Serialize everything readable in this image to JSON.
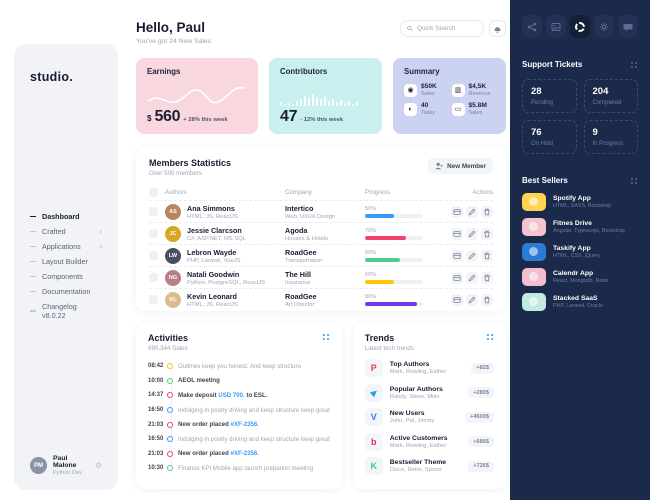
{
  "colors": {
    "accent_blue": "#3699ff",
    "danger": "#f1416c",
    "success": "#50cd89",
    "warning": "#ffc700",
    "purple": "#7239ea",
    "card_pink": "#f8d7df",
    "card_cyan": "#c9f0ee",
    "card_periwinkle": "#ccd3f0",
    "aside_bg": "#1b2a4a"
  },
  "misc": {
    "chevron": "›",
    "gear_glyph": "⚙"
  },
  "sidebar": {
    "logo": "studio.",
    "nav": [
      {
        "label": "Dashboard"
      },
      {
        "label": "Crafted"
      },
      {
        "label": "Applications"
      },
      {
        "label": "Layout Builder"
      },
      {
        "label": "Components"
      },
      {
        "label": "Documentation"
      },
      {
        "label": "Changelog v8.0.22"
      }
    ],
    "user": {
      "name": "Paul Malone",
      "role": "Python Dev"
    }
  },
  "header": {
    "greeting": "Hello, Paul",
    "subtitle": "You've got 24 New Sales",
    "search_placeholder": "Quick Search"
  },
  "stat_cards": {
    "earnings": {
      "title": "Earnings",
      "currency": "$",
      "value": "560",
      "delta": "+ 28% this week"
    },
    "contributors": {
      "title": "Contributors",
      "value": "47",
      "delta": "- 12% this week",
      "bars": [
        4,
        2,
        3,
        2,
        5,
        7,
        10,
        8,
        12,
        9,
        7,
        9,
        5,
        7,
        4,
        6,
        3,
        5,
        2,
        4
      ]
    },
    "summary": {
      "title": "Summary",
      "items": [
        {
          "icon": "◉",
          "value": "$50K",
          "label": "Sales"
        },
        {
          "icon": "▥",
          "value": "$4,5K",
          "label": "Revenue"
        },
        {
          "icon": "◐",
          "value": "40",
          "label": "Tasks"
        },
        {
          "icon": "▭",
          "value": "$5.8M",
          "label": "Sales"
        }
      ]
    }
  },
  "members": {
    "title": "Members Statistics",
    "subtitle": "Over 500 members",
    "button": "New Member",
    "columns": [
      "Authors",
      "Company",
      "Progress",
      "Actions"
    ],
    "rows": [
      {
        "name": "Ana Simmons",
        "skills": "HTML, JS, ReactJS",
        "company": "Intertico",
        "company_sub": "Web, UI/UX Design",
        "progress": "50%",
        "progress_color": "#3699ff",
        "avatar_color": "#b9855f"
      },
      {
        "name": "Jessie Clarcson",
        "skills": "C#, ASP.NET, MS SQL",
        "company": "Agoda",
        "company_sub": "Houses & Hotels",
        "progress": "70%",
        "progress_color": "#f1416c",
        "avatar_color": "#d9a61f"
      },
      {
        "name": "Lebron Wayde",
        "skills": "PHP, Laravel, VueJS",
        "company": "RoadGee",
        "company_sub": "Transportation",
        "progress": "60%",
        "progress_color": "#50cd89",
        "avatar_color": "#4a4f63"
      },
      {
        "name": "Natali Goodwin",
        "skills": "Python, PostgreSQL, ReactJS",
        "company": "The Hill",
        "company_sub": "Insurance",
        "progress": "50%",
        "progress_color": "#ffc700",
        "avatar_color": "#b87f86"
      },
      {
        "name": "Kevin Leonard",
        "skills": "HTML, JS, ReactJS",
        "company": "RoadGee",
        "company_sub": "Art Director",
        "progress": "90%",
        "progress_color": "#7239ea",
        "avatar_color": "#d9bd8f"
      }
    ]
  },
  "activities": {
    "title": "Activities",
    "subtitle": "890,344 Sales",
    "items": [
      {
        "time": "08:42",
        "color": "#ffc700",
        "pre": "Outlines keep you honest. And keep structure",
        "link": "",
        "post": ""
      },
      {
        "time": "10:00",
        "color": "#50cd89",
        "pre": "AEOL meeting",
        "link": "",
        "post": ""
      },
      {
        "time": "14:37",
        "color": "#f1416c",
        "pre": "Make deposit ",
        "link": "USD 700.",
        "post": " to ESL."
      },
      {
        "time": "16:50",
        "color": "#3699ff",
        "pre": "Indulging in poorly driving and keep structure keep great",
        "link": "",
        "post": ""
      },
      {
        "time": "21:03",
        "color": "#f1416c",
        "pre": "New order placed ",
        "link": "#XF-2356.",
        "post": ""
      },
      {
        "time": "16:50",
        "color": "#3699ff",
        "pre": "Indulging in poorly driving and keep structure keep great",
        "link": "",
        "post": ""
      },
      {
        "time": "21:03",
        "color": "#f1416c",
        "pre": "New order placed ",
        "link": "#XF-2356.",
        "post": ""
      },
      {
        "time": "10:30",
        "color": "#50cd89",
        "pre": "Finance KPI Mobile app launch preparion meeting",
        "link": "",
        "post": ""
      }
    ]
  },
  "trends": {
    "title": "Trends",
    "subtitle": "Latest tech trends",
    "items": [
      {
        "glyph": "P",
        "color": "#e2422e",
        "title": "Top Authors",
        "sub": "Mark, Rowling, Esther",
        "badge": "+82$"
      },
      {
        "glyph": "▶",
        "color": "#2aa4e4",
        "title": "Popular Authors",
        "sub": "Randy, Steve, Mike",
        "badge": "+280$"
      },
      {
        "glyph": "V",
        "color": "#2f80ed",
        "title": "New Users",
        "sub": "John, Pat, Jimmy",
        "badge": "+4500$"
      },
      {
        "glyph": "b",
        "color": "#e0314b",
        "title": "Active Customers",
        "sub": "Mark, Rowling, Esther",
        "badge": "+686$"
      },
      {
        "glyph": "K",
        "color": "#29d66f",
        "title": "Bestseller Theme",
        "sub": "Disco, Retro, Sports",
        "badge": "+726$"
      }
    ]
  },
  "aside": {
    "support": {
      "title": "Support Tickets",
      "cards": [
        {
          "value": "28",
          "label": "Pending"
        },
        {
          "value": "204",
          "label": "Completed"
        },
        {
          "value": "76",
          "label": "On Hold"
        },
        {
          "value": "9",
          "label": "In Progress"
        }
      ]
    },
    "sellers": {
      "title": "Best Sellers",
      "items": [
        {
          "title": "Spotify App",
          "sub": "HTML, SASS, Bootstrap",
          "color": "#ffd450"
        },
        {
          "title": "Fitnes Drive",
          "sub": "Angular, Typescript, Bootstrap",
          "color": "#f4c3cf"
        },
        {
          "title": "Taskify App",
          "sub": "HTML, CSS, jQuery",
          "color": "#2b7bd4"
        },
        {
          "title": "Calendr App",
          "sub": "React, Mongodb, Node",
          "color": "#f3bfd0"
        },
        {
          "title": "Stacked SaaS",
          "sub": "PHP, Laravel, Oracle",
          "color": "#c3ebdd"
        }
      ]
    }
  }
}
